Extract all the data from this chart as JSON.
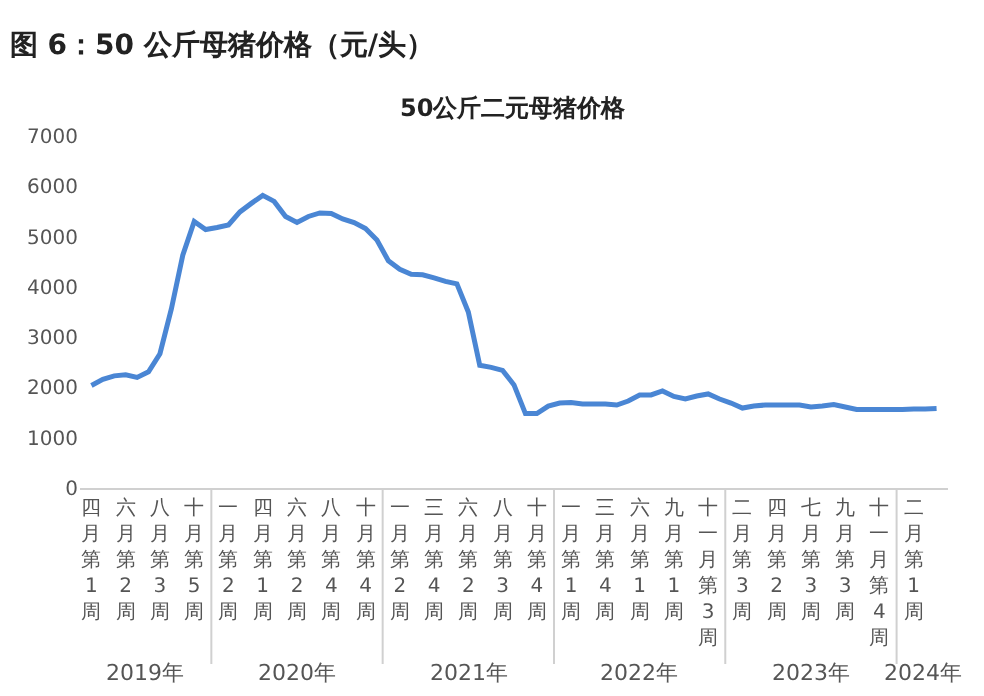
{
  "chart_data": {
    "type": "line",
    "title": "图 6：50 公斤母猪价格（元/头）",
    "subtitle": "50公斤二元母猪价格",
    "categories": [
      "四月第1周",
      null,
      null,
      "六月第2周",
      null,
      null,
      "八月第3周",
      null,
      null,
      "十月第5周",
      null,
      null,
      "一月第2周",
      null,
      null,
      "四月第1周",
      null,
      null,
      "六月第2周",
      null,
      null,
      "八月第4周",
      null,
      null,
      "十月第4周",
      null,
      null,
      "一月第2周",
      null,
      null,
      "三月第4周",
      null,
      null,
      "六月第2周",
      null,
      null,
      "八月第3周",
      null,
      null,
      "十月第4周",
      null,
      null,
      "一月第1周",
      null,
      null,
      "三月第4周",
      null,
      null,
      "六月第1周",
      null,
      null,
      "九月第1周",
      null,
      null,
      "十一月第3周",
      null,
      null,
      "二月第3周",
      null,
      null,
      "四月第2周",
      null,
      null,
      "七月第3周",
      null,
      null,
      "九月第3周",
      null,
      null,
      "十一月第4周",
      null,
      null,
      "二月第1周",
      null,
      null
    ],
    "series": [
      {
        "color": "#4a86d4",
        "values": [
          2040,
          2160,
          2230,
          2250,
          2200,
          2310,
          2670,
          3560,
          4630,
          5300,
          5140,
          5180,
          5230,
          5490,
          5660,
          5820,
          5700,
          5400,
          5280,
          5400,
          5470,
          5460,
          5350,
          5280,
          5160,
          4930,
          4520,
          4350,
          4250,
          4240,
          4180,
          4110,
          4060,
          3500,
          2440,
          2400,
          2340,
          2050,
          1480,
          1480,
          1630,
          1690,
          1700,
          1670,
          1670,
          1670,
          1650,
          1730,
          1850,
          1850,
          1930,
          1820,
          1770,
          1830,
          1870,
          1770,
          1690,
          1590,
          1630,
          1650,
          1650,
          1650,
          1650,
          1610,
          1630,
          1660,
          1610,
          1560,
          1560,
          1560,
          1560,
          1560,
          1570,
          1570,
          1580
        ]
      }
    ],
    "ylim": [
      0,
      7000
    ],
    "yticks": [
      0,
      1000,
      2000,
      3000,
      4000,
      5000,
      6000,
      7000
    ],
    "grid": false,
    "marker": "none",
    "line_style": "solid",
    "annotations": [
      "2019年",
      "2020年",
      "2021年",
      "2022年",
      "2023年",
      "2024年"
    ]
  }
}
